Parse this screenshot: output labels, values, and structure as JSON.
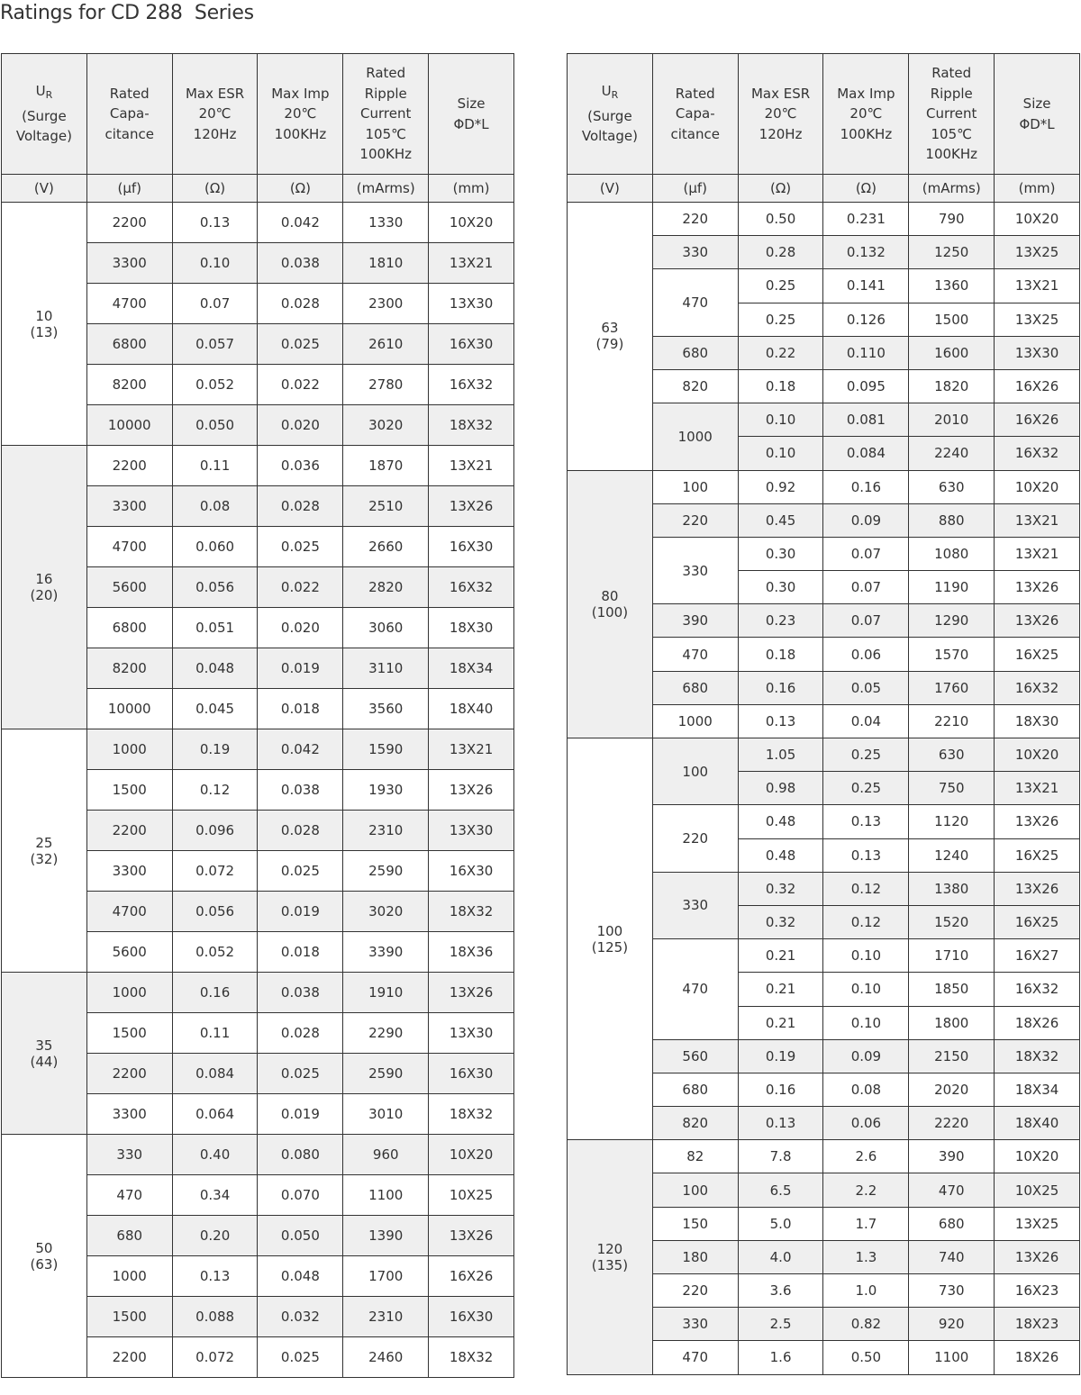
{
  "title": "Ratings for CD 288  Series",
  "header": {
    "ur_main": "U",
    "ur_sub": "R",
    "columns": [
      [
        "(Surge",
        "Voltage)"
      ],
      [
        "Rated",
        "Capa-",
        "citance"
      ],
      [
        "Max ESR",
        "20℃",
        "120Hz"
      ],
      [
        "Max Imp",
        "20℃",
        "100KHz"
      ],
      [
        "Rated",
        "Ripple",
        "Current",
        "105℃",
        "100KHz"
      ],
      [
        "Size",
        "ΦD*L"
      ]
    ],
    "units": [
      "(V)",
      "(μf)",
      "(Ω)",
      "(Ω)",
      "(mArms)",
      "(mm)"
    ]
  },
  "colors": {
    "shade": "#efefef",
    "border": "#333333",
    "text": "#333333"
  },
  "tables": [
    {
      "groups": [
        {
          "voltage": "10",
          "surge": "(13)",
          "caps": [
            {
              "cap": "2200",
              "rows": [
                [
                  "0.13",
                  "0.042",
                  "1330",
                  "10X20"
                ]
              ]
            },
            {
              "cap": "3300",
              "rows": [
                [
                  "0.10",
                  "0.038",
                  "1810",
                  "13X21"
                ]
              ]
            },
            {
              "cap": "4700",
              "rows": [
                [
                  "0.07",
                  "0.028",
                  "2300",
                  "13X30"
                ]
              ]
            },
            {
              "cap": "6800",
              "rows": [
                [
                  "0.057",
                  "0.025",
                  "2610",
                  "16X30"
                ]
              ]
            },
            {
              "cap": "8200",
              "rows": [
                [
                  "0.052",
                  "0.022",
                  "2780",
                  "16X32"
                ]
              ]
            },
            {
              "cap": "10000",
              "rows": [
                [
                  "0.050",
                  "0.020",
                  "3020",
                  "18X32"
                ]
              ]
            }
          ]
        },
        {
          "voltage": "16",
          "surge": "(20)",
          "caps": [
            {
              "cap": "2200",
              "rows": [
                [
                  "0.11",
                  "0.036",
                  "1870",
                  "13X21"
                ]
              ]
            },
            {
              "cap": "3300",
              "rows": [
                [
                  "0.08",
                  "0.028",
                  "2510",
                  "13X26"
                ]
              ]
            },
            {
              "cap": "4700",
              "rows": [
                [
                  "0.060",
                  "0.025",
                  "2660",
                  "16X30"
                ]
              ]
            },
            {
              "cap": "5600",
              "rows": [
                [
                  "0.056",
                  "0.022",
                  "2820",
                  "16X32"
                ]
              ]
            },
            {
              "cap": "6800",
              "rows": [
                [
                  "0.051",
                  "0.020",
                  "3060",
                  "18X30"
                ]
              ]
            },
            {
              "cap": "8200",
              "rows": [
                [
                  "0.048",
                  "0.019",
                  "3110",
                  "18X34"
                ]
              ]
            },
            {
              "cap": "10000",
              "rows": [
                [
                  "0.045",
                  "0.018",
                  "3560",
                  "18X40"
                ]
              ]
            }
          ]
        },
        {
          "voltage": "25",
          "surge": "(32)",
          "caps": [
            {
              "cap": "1000",
              "rows": [
                [
                  "0.19",
                  "0.042",
                  "1590",
                  "13X21"
                ]
              ]
            },
            {
              "cap": "1500",
              "rows": [
                [
                  "0.12",
                  "0.038",
                  "1930",
                  "13X26"
                ]
              ]
            },
            {
              "cap": "2200",
              "rows": [
                [
                  "0.096",
                  "0.028",
                  "2310",
                  "13X30"
                ]
              ]
            },
            {
              "cap": "3300",
              "rows": [
                [
                  "0.072",
                  "0.025",
                  "2590",
                  "16X30"
                ]
              ]
            },
            {
              "cap": "4700",
              "rows": [
                [
                  "0.056",
                  "0.019",
                  "3020",
                  "18X32"
                ]
              ]
            },
            {
              "cap": "5600",
              "rows": [
                [
                  "0.052",
                  "0.018",
                  "3390",
                  "18X36"
                ]
              ]
            }
          ]
        },
        {
          "voltage": "35",
          "surge": "(44)",
          "caps": [
            {
              "cap": "1000",
              "rows": [
                [
                  "0.16",
                  "0.038",
                  "1910",
                  "13X26"
                ]
              ]
            },
            {
              "cap": "1500",
              "rows": [
                [
                  "0.11",
                  "0.028",
                  "2290",
                  "13X30"
                ]
              ]
            },
            {
              "cap": "2200",
              "rows": [
                [
                  "0.084",
                  "0.025",
                  "2590",
                  "16X30"
                ]
              ]
            },
            {
              "cap": "3300",
              "rows": [
                [
                  "0.064",
                  "0.019",
                  "3010",
                  "18X32"
                ]
              ]
            }
          ]
        },
        {
          "voltage": "50",
          "surge": "(63)",
          "caps": [
            {
              "cap": "330",
              "rows": [
                [
                  "0.40",
                  "0.080",
                  "960",
                  "10X20"
                ]
              ]
            },
            {
              "cap": "470",
              "rows": [
                [
                  "0.34",
                  "0.070",
                  "1100",
                  "10X25"
                ]
              ]
            },
            {
              "cap": "680",
              "rows": [
                [
                  "0.20",
                  "0.050",
                  "1390",
                  "13X26"
                ]
              ]
            },
            {
              "cap": "1000",
              "rows": [
                [
                  "0.13",
                  "0.048",
                  "1700",
                  "16X26"
                ]
              ]
            },
            {
              "cap": "1500",
              "rows": [
                [
                  "0.088",
                  "0.032",
                  "2310",
                  "16X30"
                ]
              ]
            },
            {
              "cap": "2200",
              "rows": [
                [
                  "0.072",
                  "0.025",
                  "2460",
                  "18X32"
                ]
              ]
            }
          ]
        }
      ]
    },
    {
      "groups": [
        {
          "voltage": "63",
          "surge": "(79)",
          "caps": [
            {
              "cap": "220",
              "rows": [
                [
                  "0.50",
                  "0.231",
                  "790",
                  "10X20"
                ]
              ]
            },
            {
              "cap": "330",
              "rows": [
                [
                  "0.28",
                  "0.132",
                  "1250",
                  "13X25"
                ]
              ]
            },
            {
              "cap": "470",
              "rows": [
                [
                  "0.25",
                  "0.141",
                  "1360",
                  "13X21"
                ],
                [
                  "0.25",
                  "0.126",
                  "1500",
                  "13X25"
                ]
              ]
            },
            {
              "cap": "680",
              "rows": [
                [
                  "0.22",
                  "0.110",
                  "1600",
                  "13X30"
                ]
              ]
            },
            {
              "cap": "820",
              "rows": [
                [
                  "0.18",
                  "0.095",
                  "1820",
                  "16X26"
                ]
              ]
            },
            {
              "cap": "1000",
              "rows": [
                [
                  "0.10",
                  "0.081",
                  "2010",
                  "16X26"
                ],
                [
                  "0.10",
                  "0.084",
                  "2240",
                  "16X32"
                ]
              ]
            }
          ]
        },
        {
          "voltage": "80",
          "surge": "(100)",
          "caps": [
            {
              "cap": "100",
              "rows": [
                [
                  "0.92",
                  "0.16",
                  "630",
                  "10X20"
                ]
              ]
            },
            {
              "cap": "220",
              "rows": [
                [
                  "0.45",
                  "0.09",
                  "880",
                  "13X21"
                ]
              ]
            },
            {
              "cap": "330",
              "rows": [
                [
                  "0.30",
                  "0.07",
                  "1080",
                  "13X21"
                ],
                [
                  "0.30",
                  "0.07",
                  "1190",
                  "13X26"
                ]
              ]
            },
            {
              "cap": "390",
              "rows": [
                [
                  "0.23",
                  "0.07",
                  "1290",
                  "13X26"
                ]
              ]
            },
            {
              "cap": "470",
              "rows": [
                [
                  "0.18",
                  "0.06",
                  "1570",
                  "16X25"
                ]
              ]
            },
            {
              "cap": "680",
              "rows": [
                [
                  "0.16",
                  "0.05",
                  "1760",
                  "16X32"
                ]
              ]
            },
            {
              "cap": "1000",
              "rows": [
                [
                  "0.13",
                  "0.04",
                  "2210",
                  "18X30"
                ]
              ]
            }
          ]
        },
        {
          "voltage": "100",
          "surge": "(125)",
          "caps": [
            {
              "cap": "100",
              "rows": [
                [
                  "1.05",
                  "0.25",
                  "630",
                  "10X20"
                ],
                [
                  "0.98",
                  "0.25",
                  "750",
                  "13X21"
                ]
              ]
            },
            {
              "cap": "220",
              "rows": [
                [
                  "0.48",
                  "0.13",
                  "1120",
                  "13X26"
                ],
                [
                  "0.48",
                  "0.13",
                  "1240",
                  "16X25"
                ]
              ]
            },
            {
              "cap": "330",
              "rows": [
                [
                  "0.32",
                  "0.12",
                  "1380",
                  "13X26"
                ],
                [
                  "0.32",
                  "0.12",
                  "1520",
                  "16X25"
                ]
              ]
            },
            {
              "cap": "470",
              "rows": [
                [
                  "0.21",
                  "0.10",
                  "1710",
                  "16X27"
                ],
                [
                  "0.21",
                  "0.10",
                  "1850",
                  "16X32"
                ],
                [
                  "0.21",
                  "0.10",
                  "1800",
                  "18X26"
                ]
              ]
            },
            {
              "cap": "560",
              "rows": [
                [
                  "0.19",
                  "0.09",
                  "2150",
                  "18X32"
                ]
              ]
            },
            {
              "cap": "680",
              "rows": [
                [
                  "0.16",
                  "0.08",
                  "2020",
                  "18X34"
                ]
              ]
            },
            {
              "cap": "820",
              "rows": [
                [
                  "0.13",
                  "0.06",
                  "2220",
                  "18X40"
                ]
              ]
            }
          ]
        },
        {
          "voltage": "120",
          "surge": "(135)",
          "caps": [
            {
              "cap": "82",
              "rows": [
                [
                  "7.8",
                  "2.6",
                  "390",
                  "10X20"
                ]
              ]
            },
            {
              "cap": "100",
              "rows": [
                [
                  "6.5",
                  "2.2",
                  "470",
                  "10X25"
                ]
              ]
            },
            {
              "cap": "150",
              "rows": [
                [
                  "5.0",
                  "1.7",
                  "680",
                  "13X25"
                ]
              ]
            },
            {
              "cap": "180",
              "rows": [
                [
                  "4.0",
                  "1.3",
                  "740",
                  "13X26"
                ]
              ]
            },
            {
              "cap": "220",
              "rows": [
                [
                  "3.6",
                  "1.0",
                  "730",
                  "16X23"
                ]
              ]
            },
            {
              "cap": "330",
              "rows": [
                [
                  "2.5",
                  "0.82",
                  "920",
                  "18X23"
                ]
              ]
            },
            {
              "cap": "470",
              "rows": [
                [
                  "1.6",
                  "0.50",
                  "1100",
                  "18X26"
                ]
              ]
            }
          ]
        }
      ]
    }
  ]
}
